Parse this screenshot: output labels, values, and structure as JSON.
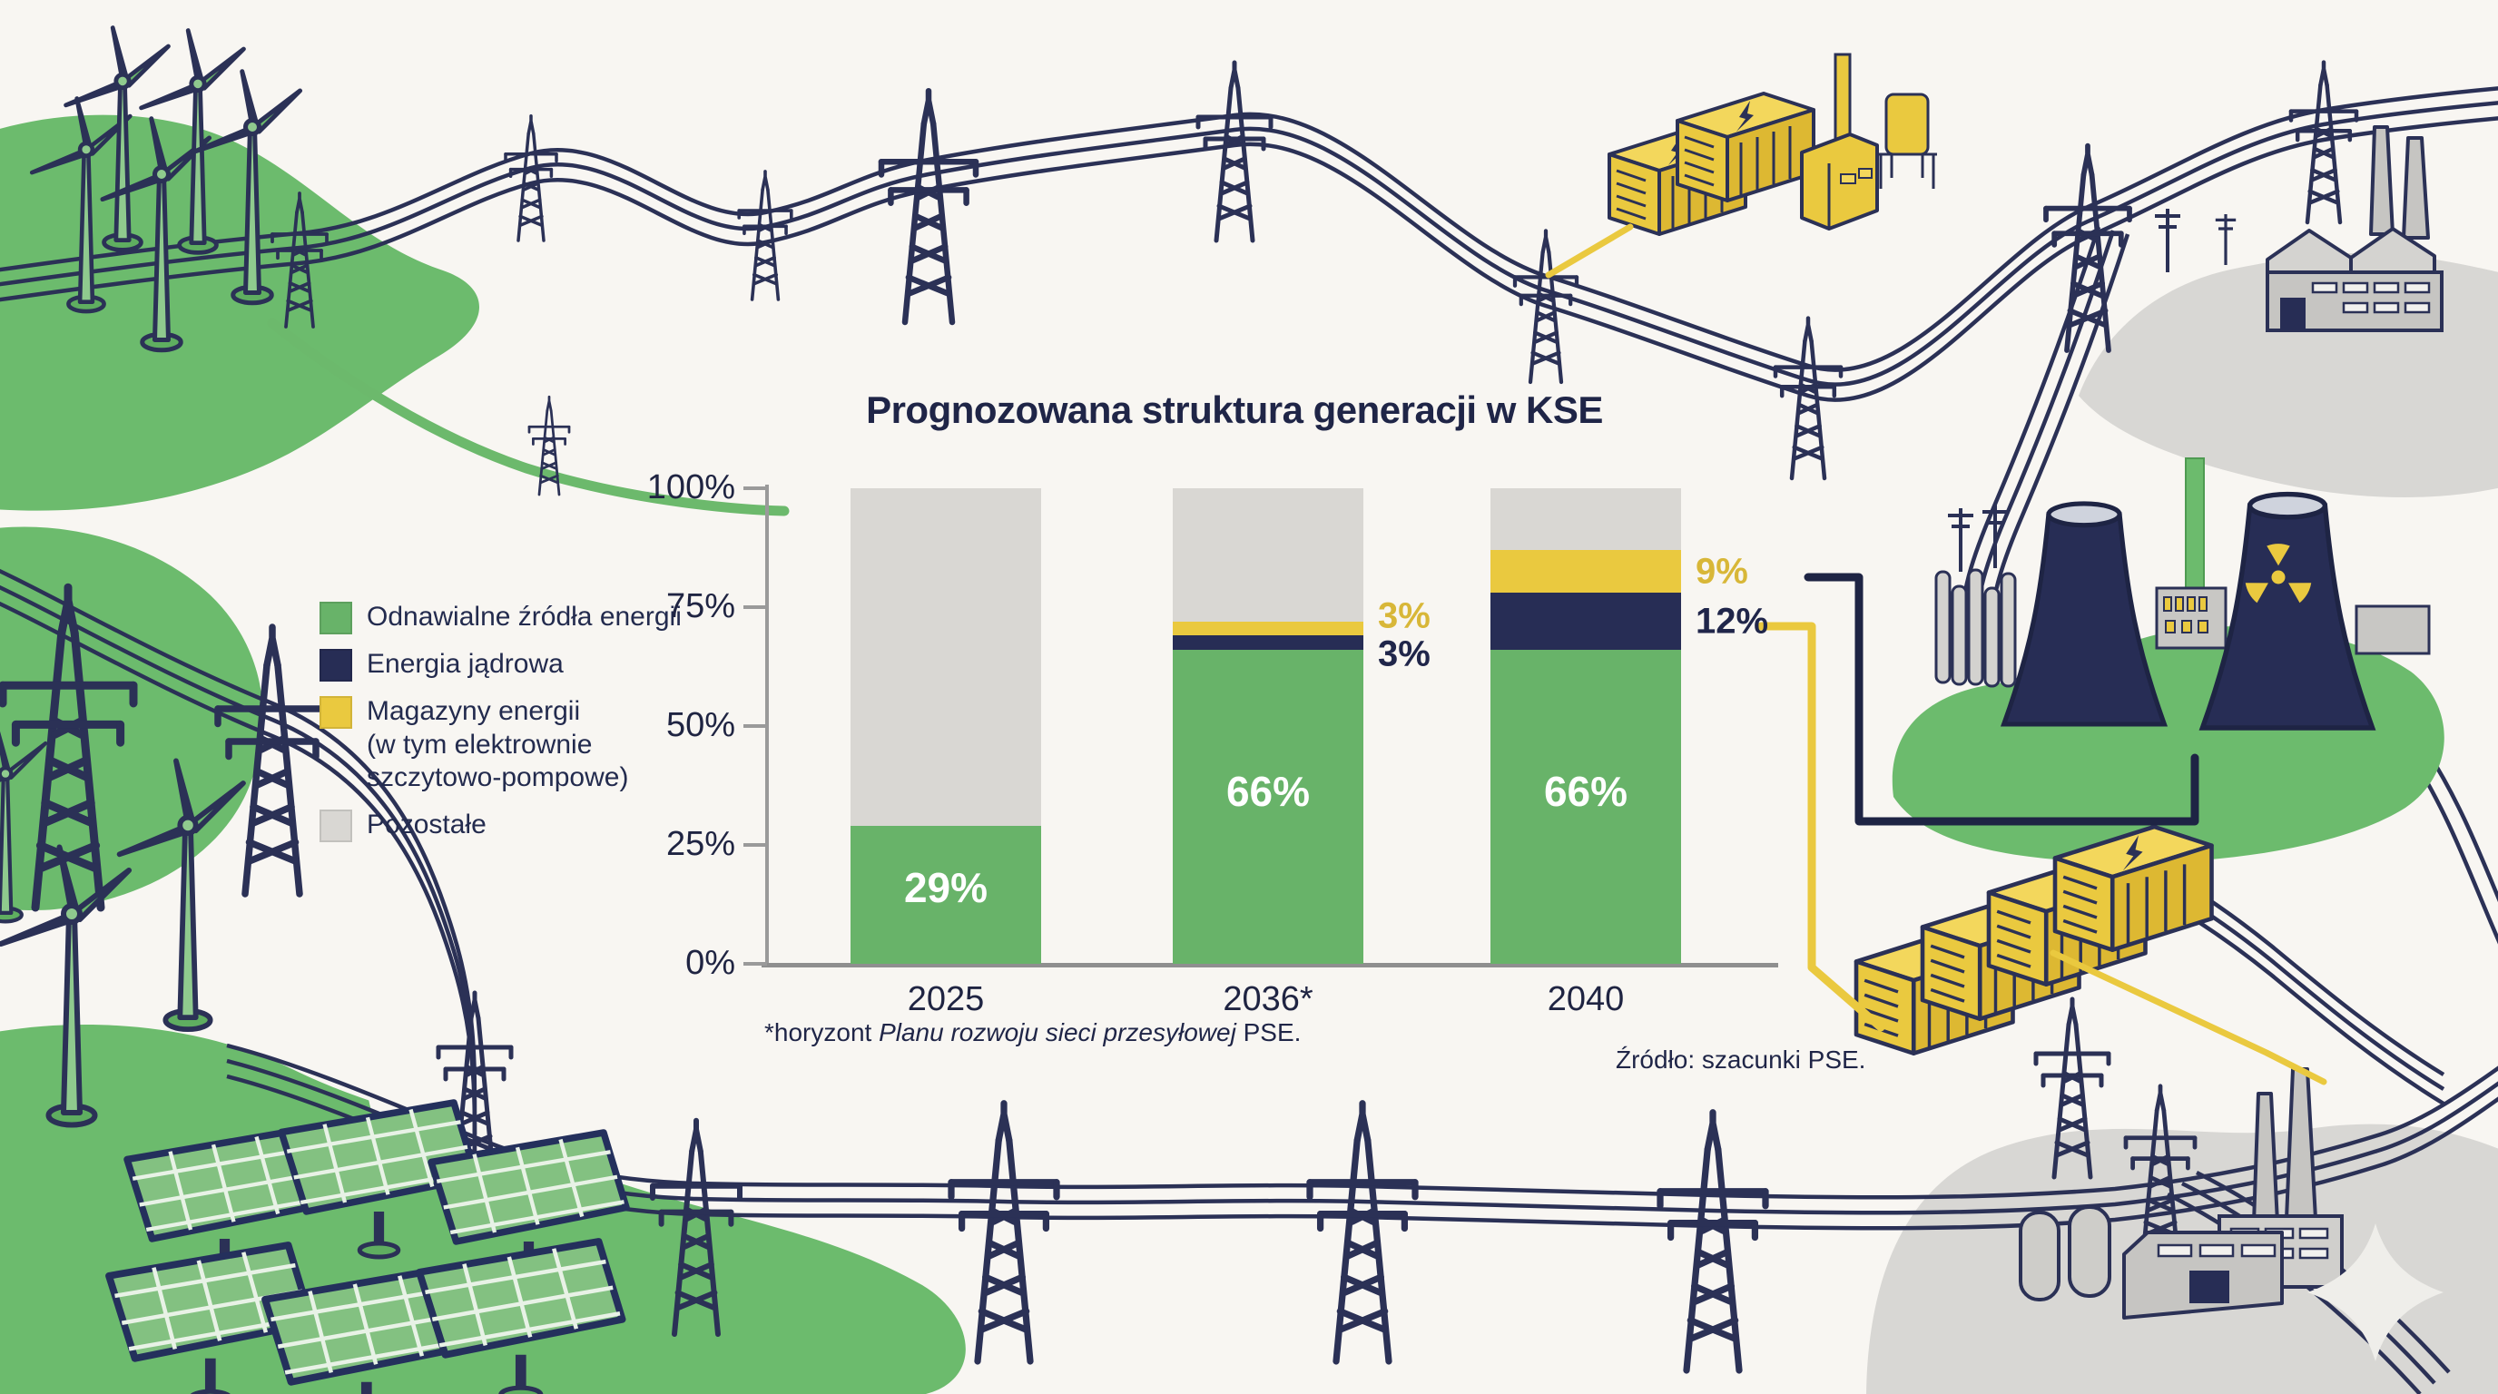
{
  "title": "Prognozowana struktura generacji w KSE",
  "colors": {
    "oze": "#68b369",
    "jadrowa": "#272d55",
    "magazyny": "#eac93f",
    "pozostale": "#d9d7d3",
    "yellow_label": "#d8b738",
    "navy_label": "#20264a",
    "axis": "#9a9a9a"
  },
  "legend": {
    "items": [
      {
        "key": "oze",
        "label": "Odnawialne źródła energii"
      },
      {
        "key": "jadrowa",
        "label": "Energia jądrowa"
      },
      {
        "key": "magazyny",
        "label": "Magazyny energii\n(w tym elektrownie\nszczytowo-pompowe)"
      },
      {
        "key": "pozostale",
        "label": "Pozostałe"
      }
    ]
  },
  "chart_data": {
    "type": "bar",
    "stacked": true,
    "title": "Prognozowana struktura generacji w KSE",
    "categories": [
      "2025",
      "2036*",
      "2040"
    ],
    "series": [
      {
        "key": "oze",
        "name": "Odnawialne źródła energii",
        "color": "#68b369",
        "values": [
          29,
          66,
          66
        ]
      },
      {
        "key": "jadrowa",
        "name": "Energia jądrowa",
        "color": "#272d55",
        "values": [
          0,
          3,
          12
        ]
      },
      {
        "key": "magazyny",
        "name": "Magazyny energii (w tym elektrownie szczytowo-pompowe)",
        "color": "#eac93f",
        "values": [
          0,
          3,
          9
        ]
      },
      {
        "key": "pozostale",
        "name": "Pozostałe",
        "color": "#d9d7d3",
        "values": [
          71,
          28,
          13
        ]
      }
    ],
    "y_ticks": [
      {
        "label": "100%",
        "value": 100
      },
      {
        "label": "75%",
        "value": 75
      },
      {
        "label": "50%",
        "value": 50
      },
      {
        "label": "25%",
        "value": 25
      },
      {
        "label": "0%",
        "value": 0
      }
    ],
    "ylim": [
      0,
      100
    ],
    "grid": false,
    "legend_position": "left",
    "inside_labels": [
      {
        "category": "2025",
        "series": "oze",
        "text": "29%"
      },
      {
        "category": "2036*",
        "series": "oze",
        "text": "66%"
      },
      {
        "category": "2040",
        "series": "oze",
        "text": "66%"
      }
    ],
    "outside_labels": [
      {
        "category": "2036*",
        "series": "magazyny",
        "text": "3%"
      },
      {
        "category": "2036*",
        "series": "jadrowa",
        "text": "3%"
      },
      {
        "category": "2040",
        "series": "magazyny",
        "text": "9%"
      },
      {
        "category": "2040",
        "series": "jadrowa",
        "text": "12%"
      }
    ]
  },
  "footnote": {
    "prefix": "*horyzont ",
    "italic": "Planu rozwoju sieci przesyłowej",
    "suffix": " PSE."
  },
  "source": "Źródło: szacunki PSE."
}
